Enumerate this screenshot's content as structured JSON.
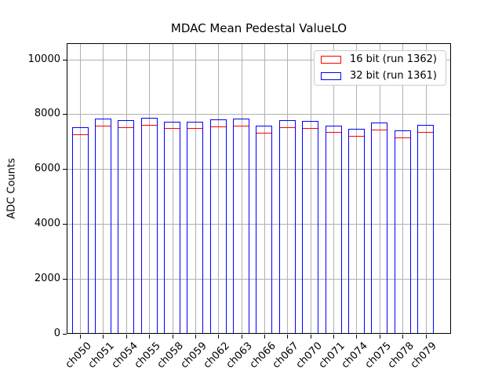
{
  "figure": {
    "background": "#ffffff"
  },
  "chart_data": {
    "type": "bar",
    "title": "MDAC Mean Pedestal ValueLO",
    "xlabel": "",
    "ylabel": "ADC Counts",
    "categories": [
      "ch050",
      "ch051",
      "ch054",
      "ch055",
      "ch058",
      "ch059",
      "ch062",
      "ch063",
      "ch066",
      "ch067",
      "ch070",
      "ch071",
      "ch074",
      "ch075",
      "ch078",
      "ch079"
    ],
    "series": [
      {
        "name": "16 bit (run 1362)",
        "color": "#ff0000",
        "fill": "none",
        "values": [
          7260,
          7595,
          7525,
          7620,
          7490,
          7505,
          7560,
          7580,
          7315,
          7525,
          7490,
          7345,
          7220,
          7430,
          7160,
          7355
        ]
      },
      {
        "name": "32 bit (run 1361)",
        "color": "#0000ff",
        "fill": "none",
        "values": [
          7525,
          7850,
          7775,
          7870,
          7735,
          7735,
          7810,
          7850,
          7580,
          7775,
          7755,
          7580,
          7470,
          7695,
          7410,
          7600
        ]
      }
    ],
    "ylim": [
      0,
      10590
    ],
    "yticks": [
      0,
      2000,
      4000,
      6000,
      8000,
      10000
    ],
    "xtick_rotation": 45,
    "grid": true,
    "grid_color": "#b0b0b0",
    "bar_style": "outline",
    "spine_color": "#000000",
    "legend": {
      "position": "upper right",
      "border_color": "#cccccc"
    }
  }
}
